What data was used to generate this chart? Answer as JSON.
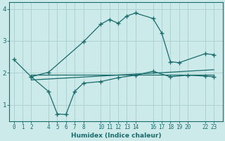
{
  "background_color": "#cceaea",
  "grid_color": "#aacfcf",
  "line_color": "#1a6b6b",
  "xlabel": "Humidex (Indice chaleur)",
  "xticks": [
    0,
    1,
    2,
    4,
    5,
    6,
    7,
    8,
    10,
    11,
    12,
    13,
    14,
    16,
    17,
    18,
    19,
    20,
    22,
    23
  ],
  "xlim": [
    -0.5,
    24.0
  ],
  "ylim": [
    0.5,
    4.2
  ],
  "yticks": [
    1,
    2,
    3,
    4
  ],
  "series1_x": [
    0,
    2,
    4,
    8,
    10,
    11,
    12,
    13,
    14,
    16,
    17,
    18,
    19,
    22,
    23
  ],
  "series1_y": [
    2.42,
    1.88,
    2.02,
    2.97,
    3.52,
    3.67,
    3.55,
    3.78,
    3.87,
    3.7,
    3.25,
    2.35,
    2.32,
    2.6,
    2.57
  ],
  "series2_x": [
    2,
    23
  ],
  "series2_y": [
    1.95,
    1.95
  ],
  "series3_x": [
    2,
    23
  ],
  "series3_y": [
    1.78,
    2.1
  ],
  "series4_x": [
    2,
    4,
    5,
    6,
    7,
    8,
    10,
    12,
    14,
    16,
    18,
    20,
    22,
    23
  ],
  "series4_y": [
    1.88,
    1.42,
    0.72,
    0.7,
    1.42,
    1.68,
    1.73,
    1.85,
    1.93,
    2.05,
    1.88,
    1.93,
    1.9,
    1.88
  ]
}
